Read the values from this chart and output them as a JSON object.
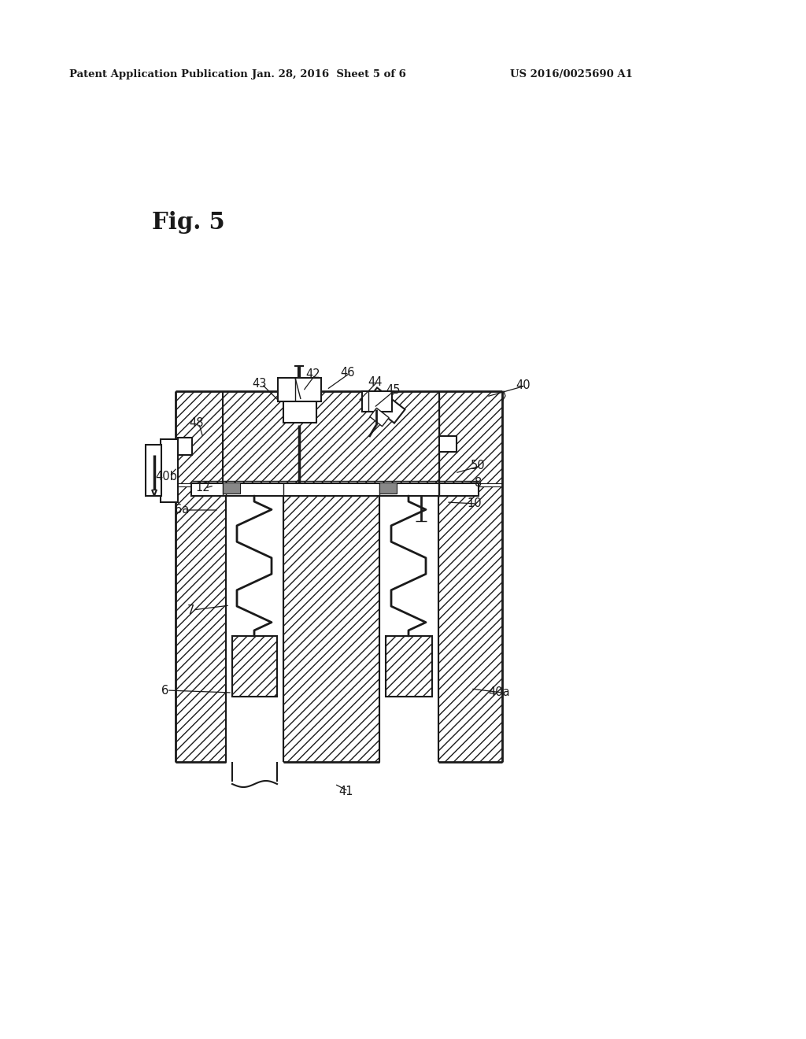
{
  "bg_color": "#ffffff",
  "lc": "#1a1a1a",
  "header_left": "Patent Application Publication",
  "header_mid": "Jan. 28, 2016  Sheet 5 of 6",
  "header_right": "US 2016/0025690 A1",
  "fig_label": "Fig. 5",
  "labels": [
    [
      "40",
      655,
      490,
      618,
      504
    ],
    [
      "40a",
      620,
      880,
      598,
      875
    ],
    [
      "40b",
      197,
      605,
      225,
      594
    ],
    [
      "41",
      430,
      1005,
      425,
      996
    ],
    [
      "42",
      388,
      476,
      385,
      497
    ],
    [
      "43",
      320,
      488,
      355,
      510
    ],
    [
      "44",
      467,
      485,
      455,
      510
    ],
    [
      "45",
      490,
      495,
      475,
      518
    ],
    [
      "46",
      432,
      474,
      415,
      495
    ],
    [
      "48",
      240,
      538,
      258,
      556
    ],
    [
      "50",
      598,
      592,
      578,
      601
    ],
    [
      "8",
      603,
      613,
      578,
      614
    ],
    [
      "10",
      593,
      640,
      567,
      638
    ],
    [
      "12",
      248,
      620,
      272,
      617
    ],
    [
      "6",
      205,
      877,
      295,
      880
    ],
    [
      "6a",
      222,
      648,
      278,
      648
    ],
    [
      "7",
      238,
      775,
      292,
      769
    ]
  ]
}
